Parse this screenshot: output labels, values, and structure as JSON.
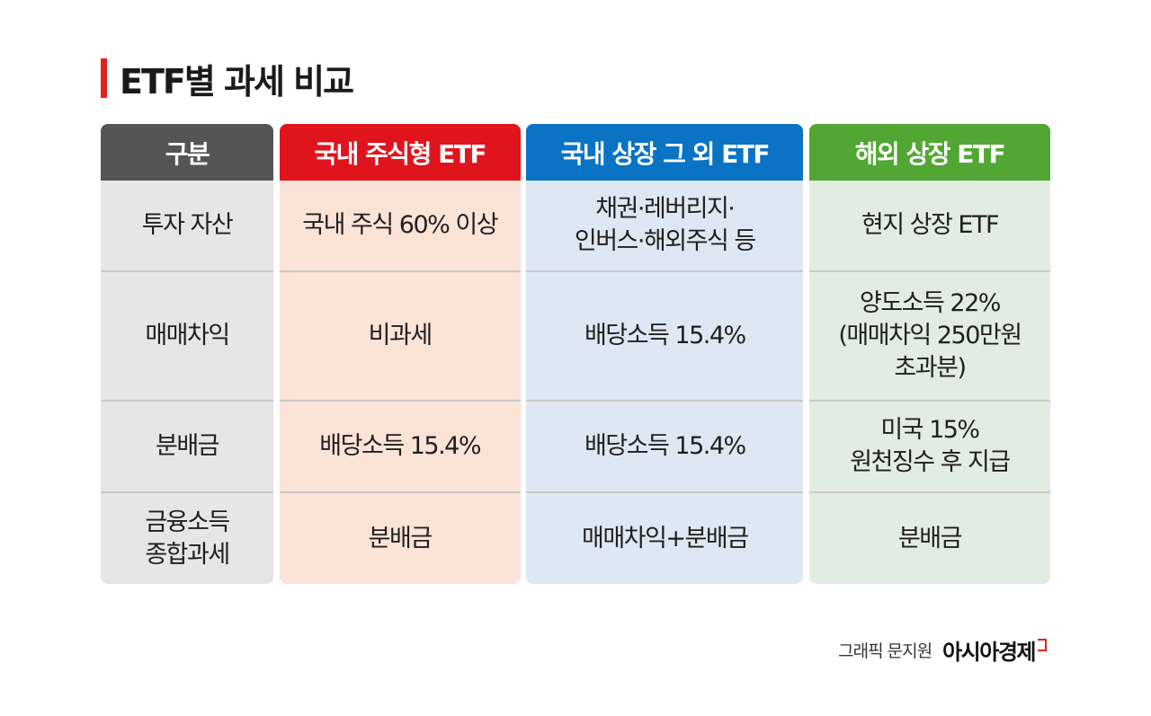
{
  "title": "ETF별 과세 비교",
  "table": {
    "columns": [
      {
        "header": "구분",
        "color": "#555555",
        "cells": [
          "투자 자산",
          "매매차익",
          "분배금",
          "금융소득\n종합과세"
        ]
      },
      {
        "header": "국내 주식형 ETF",
        "color": "#e0141d",
        "cells": [
          "국내 주식 60% 이상",
          "비과세",
          "배당소득 15.4%",
          "분배금"
        ]
      },
      {
        "header": "국내 상장 그 외 ETF",
        "color": "#0a73c4",
        "cells": [
          "채권·레버리지·\n인버스·해외주식 등",
          "배당소득 15.4%",
          "배당소득 15.4%",
          "매매차익+분배금"
        ]
      },
      {
        "header": "해외 상장 ETF",
        "color": "#52a633",
        "cells": [
          "현지 상장 ETF",
          "양도소득 22%\n(매매차익 250만원\n초과분)",
          "미국 15%\n원천징수 후 지급",
          "분배금"
        ]
      }
    ]
  },
  "credit": {
    "text": "그래픽 문지원",
    "brand": "아시아경제"
  },
  "accent_color": "#e2231a"
}
